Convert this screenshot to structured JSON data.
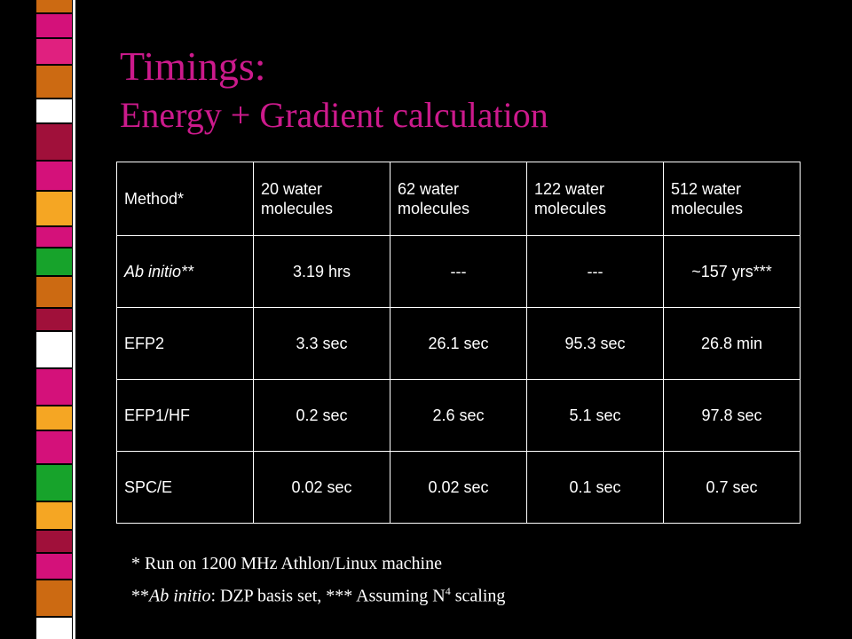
{
  "title": {
    "line1": "Timings:",
    "line2": "Energy + Gradient calculation"
  },
  "colors": {
    "title": "#cc1a8c",
    "background": "#000000",
    "text": "#ffffff",
    "stripe_palette": [
      "#d4117a",
      "#cc6a12",
      "#f5a623",
      "#17a32b",
      "#a0103a",
      "#ffffff"
    ]
  },
  "table": {
    "headers": [
      "Method*",
      "20 water molecules",
      "62 water molecules",
      "122 water molecules",
      "512 water molecules"
    ],
    "rows": [
      {
        "method": "Ab initio**",
        "values": [
          "3.19 hrs",
          "---",
          "---",
          "~157 yrs***"
        ]
      },
      {
        "method": "EFP2",
        "values": [
          "3.3 sec",
          "26.1 sec",
          "95.3 sec",
          "26.8 min"
        ]
      },
      {
        "method": "EFP1/HF",
        "values": [
          "0.2 sec",
          "2.6 sec",
          "5.1 sec",
          "97.8 sec"
        ]
      },
      {
        "method": "SPC/E",
        "values": [
          "0.02 sec",
          "0.02 sec",
          "0.1 sec",
          "0.7 sec"
        ]
      }
    ]
  },
  "footnotes": {
    "note1": "*  Run on 1200 MHz Athlon/Linux machine",
    "note2_prefix": "**",
    "note2_italic": "Ab initio",
    "note2_mid": ": DZP basis set, *** Assuming N",
    "note2_sup": "4",
    "note2_suffix": " scaling"
  }
}
